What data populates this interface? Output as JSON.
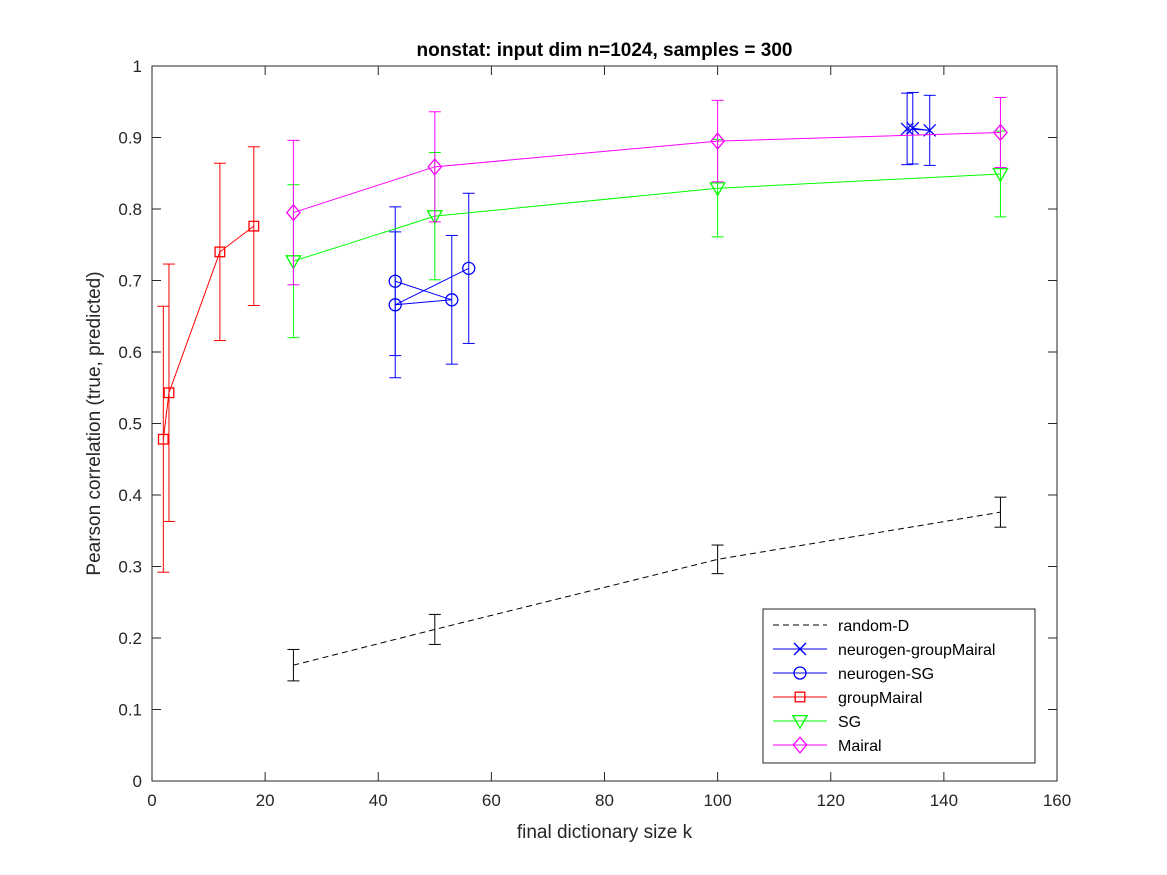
{
  "chart_data": {
    "type": "line",
    "title": "nonstat: input dim n=1024, samples = 300",
    "xlabel": "final dictionary size k",
    "ylabel": "Pearson correlation (true, predicted)",
    "xlim": [
      0,
      160
    ],
    "ylim": [
      0,
      1
    ],
    "xticks": [
      0,
      20,
      40,
      60,
      80,
      100,
      120,
      140,
      160
    ],
    "yticks": [
      0,
      0.1,
      0.2,
      0.3,
      0.4,
      0.5,
      0.6,
      0.7,
      0.8,
      0.9,
      1
    ],
    "xtick_labels": [
      "0",
      "20",
      "40",
      "60",
      "80",
      "100",
      "120",
      "140",
      "160"
    ],
    "ytick_labels": [
      "0",
      "0.1",
      "0.2",
      "0.3",
      "0.4",
      "0.5",
      "0.6",
      "0.7",
      "0.8",
      "0.9",
      "1"
    ],
    "grid": false,
    "legend_position": "bottom-right",
    "series": [
      {
        "name": "random-D",
        "color": "#000000",
        "line_style": "dashed",
        "marker": "none",
        "x": [
          25,
          50,
          100,
          150
        ],
        "y": [
          0.162,
          0.212,
          0.31,
          0.376
        ],
        "err": [
          0.022,
          0.021,
          0.02,
          0.021
        ]
      },
      {
        "name": "neurogen-groupMairal",
        "color": "#0000ff",
        "line_style": "solid",
        "marker": "x",
        "x": [
          133.5,
          137.5,
          134.5
        ],
        "y": [
          0.912,
          0.91,
          0.913
        ],
        "err": [
          0.05,
          0.049,
          0.05
        ]
      },
      {
        "name": "neurogen-SG",
        "color": "#0000ff",
        "line_style": "solid",
        "marker": "circle",
        "x": [
          43,
          53,
          43,
          56
        ],
        "y": [
          0.699,
          0.673,
          0.666,
          0.717
        ],
        "err": [
          0.104,
          0.09,
          0.102,
          0.105
        ]
      },
      {
        "name": "groupMairal",
        "color": "#ff0000",
        "line_style": "solid",
        "marker": "square",
        "x": [
          2,
          3,
          12,
          18
        ],
        "y": [
          0.478,
          0.543,
          0.74,
          0.776
        ],
        "err": [
          0.186,
          0.18,
          0.124,
          0.111
        ]
      },
      {
        "name": "SG",
        "color": "#00ff00",
        "line_style": "solid",
        "marker": "triangle-down",
        "x": [
          25,
          50,
          100,
          150
        ],
        "y": [
          0.727,
          0.79,
          0.829,
          0.849
        ],
        "err": [
          0.107,
          0.089,
          0.068,
          0.06
        ]
      },
      {
        "name": "Mairal",
        "color": "#ff00ff",
        "line_style": "solid",
        "marker": "diamond",
        "x": [
          25,
          50,
          100,
          150
        ],
        "y": [
          0.795,
          0.859,
          0.895,
          0.907
        ],
        "err": [
          0.101,
          0.077,
          0.057,
          0.049
        ]
      }
    ]
  }
}
